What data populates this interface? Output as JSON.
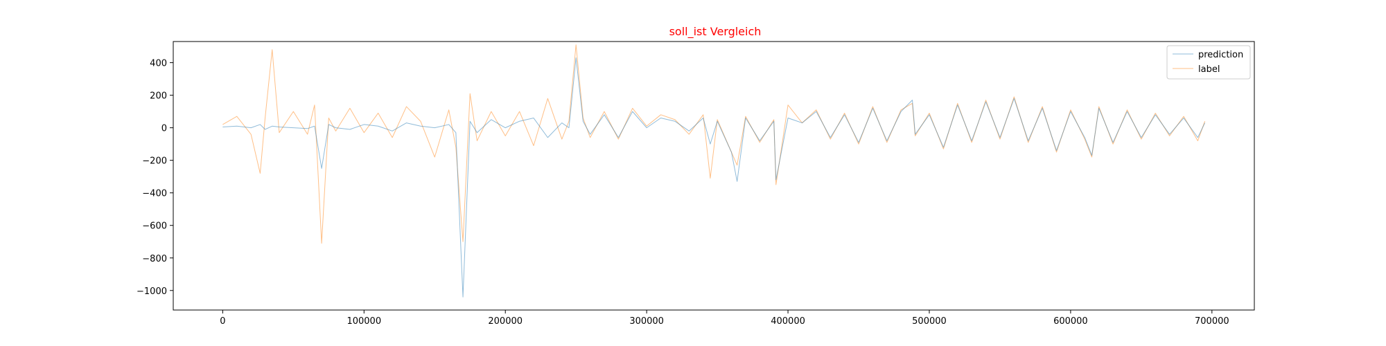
{
  "chart_data": {
    "type": "line",
    "title": "soll_ist Vergleich",
    "title_color": "#ff0000",
    "xlabel": "",
    "ylabel": "",
    "xlim": [
      -35000,
      730000
    ],
    "ylim": [
      -1120,
      530
    ],
    "x_ticks": [
      0,
      100000,
      200000,
      300000,
      400000,
      500000,
      600000,
      700000
    ],
    "y_ticks": [
      400,
      200,
      0,
      -200,
      -400,
      -600,
      -800,
      -1000
    ],
    "y_tick_labels": [
      "400",
      "200",
      "0",
      "−200",
      "−400",
      "−600",
      "−800",
      "−1000"
    ],
    "grid": false,
    "legend_placement": "top-right",
    "series": [
      {
        "name": "prediction",
        "color": "#1f77b4",
        "x": [
          0,
          10000,
          20000,
          26500,
          30000,
          35000,
          40000,
          50000,
          60000,
          65000,
          70000,
          75000,
          80000,
          90000,
          100000,
          110000,
          120000,
          130000,
          140000,
          150000,
          160000,
          165000,
          170000,
          175000,
          180000,
          190000,
          200000,
          210000,
          220000,
          230000,
          240000,
          245000,
          250000,
          255000,
          260000,
          270000,
          280000,
          290000,
          300000,
          310000,
          320000,
          330000,
          340000,
          345000,
          350000,
          360000,
          364000,
          370000,
          380000,
          390000,
          391500,
          400000,
          410000,
          420000,
          430000,
          440000,
          450000,
          460000,
          470000,
          480000,
          488000,
          490000,
          500000,
          510000,
          520000,
          530000,
          540000,
          550000,
          560000,
          570000,
          580000,
          590000,
          600000,
          610000,
          615000,
          620000,
          630000,
          640000,
          650000,
          660000,
          670000,
          680000,
          690000,
          695000
        ],
        "values": [
          5,
          10,
          0,
          20,
          -10,
          10,
          5,
          0,
          -5,
          10,
          -250,
          20,
          0,
          -10,
          20,
          10,
          -20,
          30,
          10,
          0,
          20,
          -30,
          -1040,
          40,
          -30,
          50,
          0,
          40,
          60,
          -60,
          30,
          0,
          430,
          40,
          -40,
          80,
          -60,
          100,
          0,
          60,
          40,
          -20,
          60,
          -100,
          40,
          -150,
          -330,
          60,
          -80,
          40,
          -320,
          60,
          30,
          100,
          -60,
          80,
          -90,
          120,
          -80,
          100,
          170,
          -40,
          80,
          -120,
          140,
          -80,
          160,
          -60,
          180,
          -80,
          120,
          -140,
          100,
          -60,
          -170,
          120,
          -90,
          100,
          -60,
          80,
          -40,
          60,
          -60,
          30
        ]
      },
      {
        "name": "label",
        "color": "#ff7f0e",
        "x": [
          0,
          10000,
          20000,
          26500,
          30000,
          35000,
          40000,
          50000,
          60000,
          65000,
          70000,
          75000,
          80000,
          90000,
          100000,
          110000,
          120000,
          130000,
          140000,
          150000,
          160000,
          165000,
          170000,
          175000,
          180000,
          190000,
          200000,
          210000,
          220000,
          230000,
          240000,
          245000,
          250000,
          255000,
          260000,
          270000,
          280000,
          290000,
          300000,
          310000,
          320000,
          330000,
          340000,
          345000,
          350000,
          360000,
          364000,
          370000,
          380000,
          390000,
          391500,
          400000,
          410000,
          420000,
          430000,
          440000,
          450000,
          460000,
          470000,
          480000,
          488000,
          490000,
          500000,
          510000,
          520000,
          530000,
          540000,
          550000,
          560000,
          570000,
          580000,
          590000,
          600000,
          610000,
          615000,
          620000,
          630000,
          640000,
          650000,
          660000,
          670000,
          680000,
          690000,
          695000
        ],
        "values": [
          20,
          70,
          -40,
          -280,
          60,
          480,
          -30,
          100,
          -40,
          140,
          -710,
          60,
          -20,
          120,
          -30,
          90,
          -60,
          130,
          40,
          -180,
          110,
          -120,
          -700,
          210,
          -80,
          100,
          -50,
          100,
          -110,
          180,
          -70,
          40,
          510,
          60,
          -60,
          100,
          -70,
          120,
          10,
          80,
          50,
          -40,
          80,
          -310,
          50,
          -150,
          -230,
          70,
          -90,
          50,
          -350,
          140,
          30,
          110,
          -70,
          90,
          -100,
          130,
          -90,
          110,
          150,
          -50,
          90,
          -130,
          150,
          -90,
          170,
          -70,
          190,
          -90,
          130,
          -150,
          110,
          -70,
          -180,
          130,
          -100,
          110,
          -70,
          90,
          -50,
          70,
          -80,
          40
        ]
      }
    ]
  }
}
